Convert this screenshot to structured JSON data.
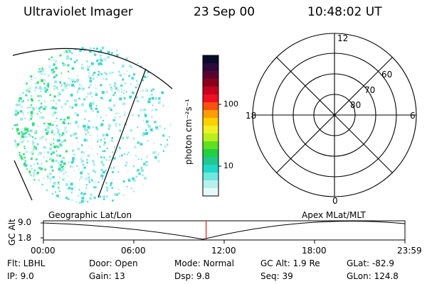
{
  "header": {
    "instrument": "Ultraviolet Imager",
    "date": "23 Sep 00",
    "time": "10:48:02 UT"
  },
  "colorbar": {
    "label": "photon cm⁻²s⁻¹",
    "ticks": [
      "100",
      "10"
    ],
    "colors": [
      "#0a0a2a",
      "#2a0a3a",
      "#5a0030",
      "#8a0018",
      "#c80020",
      "#ee1020",
      "#f85010",
      "#ff9c00",
      "#ffd000",
      "#f0f020",
      "#b8ee20",
      "#60e020",
      "#20d040",
      "#20c890",
      "#20d8c8",
      "#70e8e0",
      "#b8f0ee",
      "#e8f8f8"
    ]
  },
  "polar": {
    "mlt_labels": [
      "12",
      "18",
      "6",
      "0"
    ],
    "lat_labels": [
      "60",
      "70",
      "80"
    ]
  },
  "timeline": {
    "left_title": "Geographic Lat/Lon",
    "right_title": "Apex MLat/MLT",
    "y_axis_label": "GC Alt",
    "y_ticks": [
      "9.0",
      "1.8"
    ],
    "x_ticks": [
      "00:00",
      "06:00",
      "12:00",
      "18:00",
      "23:59"
    ],
    "marker_time_hours": 10.8
  },
  "status": {
    "filter": "Flt: LBHL",
    "door": "Door: Open",
    "mode": "Mode: Normal",
    "gc_alt": "GC Alt: 1.9 Re",
    "glat": "GLat: -82.9",
    "ip": "IP:  9.0",
    "gain": "Gain: 13",
    "dsp": "Dsp:    9.8",
    "seq": "Seq: 39",
    "glon": "GLon: 124.8"
  }
}
